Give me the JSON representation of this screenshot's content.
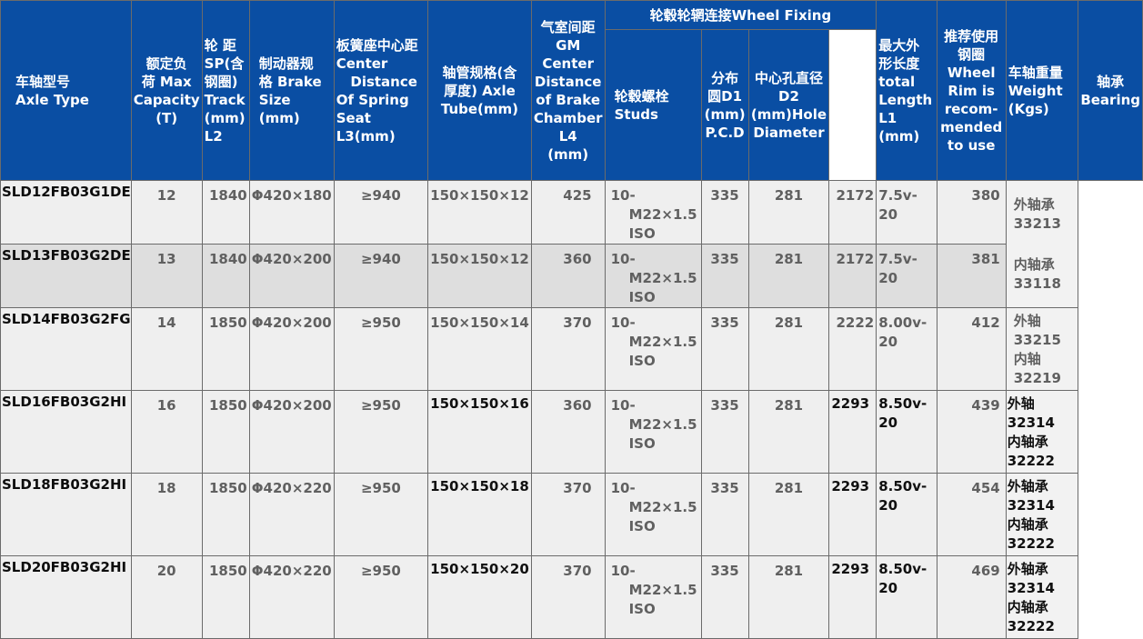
{
  "headers": {
    "axle_type": "车轴型号 Axle Type",
    "capacity": "额定负荷 Max Capacity (T)",
    "track": "轮距SP(含钢圈) Track (mm) L2",
    "brake": "制动器规格 Brake Size (mm)",
    "spring_seat": "板簧座中心距 Center Distance Of Spring Seat L3(mm)",
    "tube": "轴管规格(含厚度) Axle Tube(mm)",
    "chamber": "气室间距 GM Center Distance of Brake Chamber L4 (mm)",
    "wheel_fixing": "轮毂轮辋连接Wheel Fixing",
    "studs": "轮毂螺栓 Studs",
    "pcd": "分布圆D1 (mm) P.C.D",
    "hole": "中心孔直径 D2 (mm)Hole Diameter",
    "length": "最大外形长度 total Length L1 (mm)",
    "rim": "推荐使用钢圈 Wheel Rim is recom-mended to use",
    "weight": "车轴重量 Weight (Kgs)",
    "bearing": "轴承 Bearing"
  },
  "rows": [
    {
      "model": "SLD12FB03G1DE",
      "capacity": "12",
      "track": "1840",
      "brake": "Φ420×180",
      "spring": "≥940",
      "tube": "150×150×12",
      "chamber": "425",
      "studs": [
        "10-",
        "M22×1.5",
        "ISO"
      ],
      "pcd": "335",
      "hole": "281",
      "length": "2172",
      "rim": "7.5v-20",
      "weight": "380"
    },
    {
      "model": "SLD13FB03G2DE",
      "capacity": "13",
      "track": "1840",
      "brake": "Φ420×200",
      "spring": "≥940",
      "tube": "150×150×12",
      "chamber": "360",
      "studs": [
        "10-",
        "M22×1.5",
        "ISO"
      ],
      "pcd": "335",
      "hole": "281",
      "length": "2172",
      "rim": "7.5v-20",
      "weight": "381"
    },
    {
      "model": "SLD14FB03G2FG",
      "capacity": "14",
      "track": "1850",
      "brake": "Φ420×200",
      "spring": "≥950",
      "tube": "150×150×14",
      "chamber": "370",
      "studs": [
        "10-",
        "M22×1.5",
        "ISO"
      ],
      "pcd": "335",
      "hole": "281",
      "length": "2222",
      "rim": "8.00v-20",
      "weight": "412",
      "bearing": [
        "外轴33215",
        "内轴32219"
      ]
    },
    {
      "model": "SLD16FB03G2HI",
      "capacity": "16",
      "track": "1850",
      "brake": "Φ420×200",
      "spring": "≥950",
      "tube": "150×150×16",
      "chamber": "360",
      "studs": [
        "10-",
        "M22×1.5",
        "ISO"
      ],
      "pcd": "335",
      "hole": "281",
      "length": "2293",
      "rim": "8.50v-20",
      "weight": "439",
      "bearing": [
        "外轴32314",
        "内轴承32222"
      ]
    },
    {
      "model": "SLD18FB03G2HI",
      "capacity": "18",
      "track": "1850",
      "brake": "Φ420×220",
      "spring": "≥950",
      "tube": "150×150×18",
      "chamber": "370",
      "studs": [
        "10-",
        "M22×1.5",
        "ISO"
      ],
      "pcd": "335",
      "hole": "281",
      "length": "2293",
      "rim": "8.50v-20",
      "weight": "454",
      "bearing": [
        "外轴承32314",
        "内轴承32222"
      ]
    },
    {
      "model": "SLD20FB03G2HI",
      "capacity": "20",
      "track": "1850",
      "brake": "Φ420×220",
      "spring": "≥950",
      "tube": "150×150×20",
      "chamber": "370",
      "studs": [
        "10-",
        "M22×1.5",
        "ISO"
      ],
      "pcd": "335",
      "hole": "281",
      "length": "2293",
      "rim": "8.50v-20",
      "weight": "469",
      "bearing": [
        "外轴承32314",
        "内轴承32222"
      ]
    }
  ],
  "shared_bearing_rows_1_2": [
    "外轴承33213",
    "内轴承33118"
  ],
  "colors": {
    "header_bg": "#0a4ea3",
    "header_text": "#ffffff",
    "cell_text": "#606060"
  }
}
